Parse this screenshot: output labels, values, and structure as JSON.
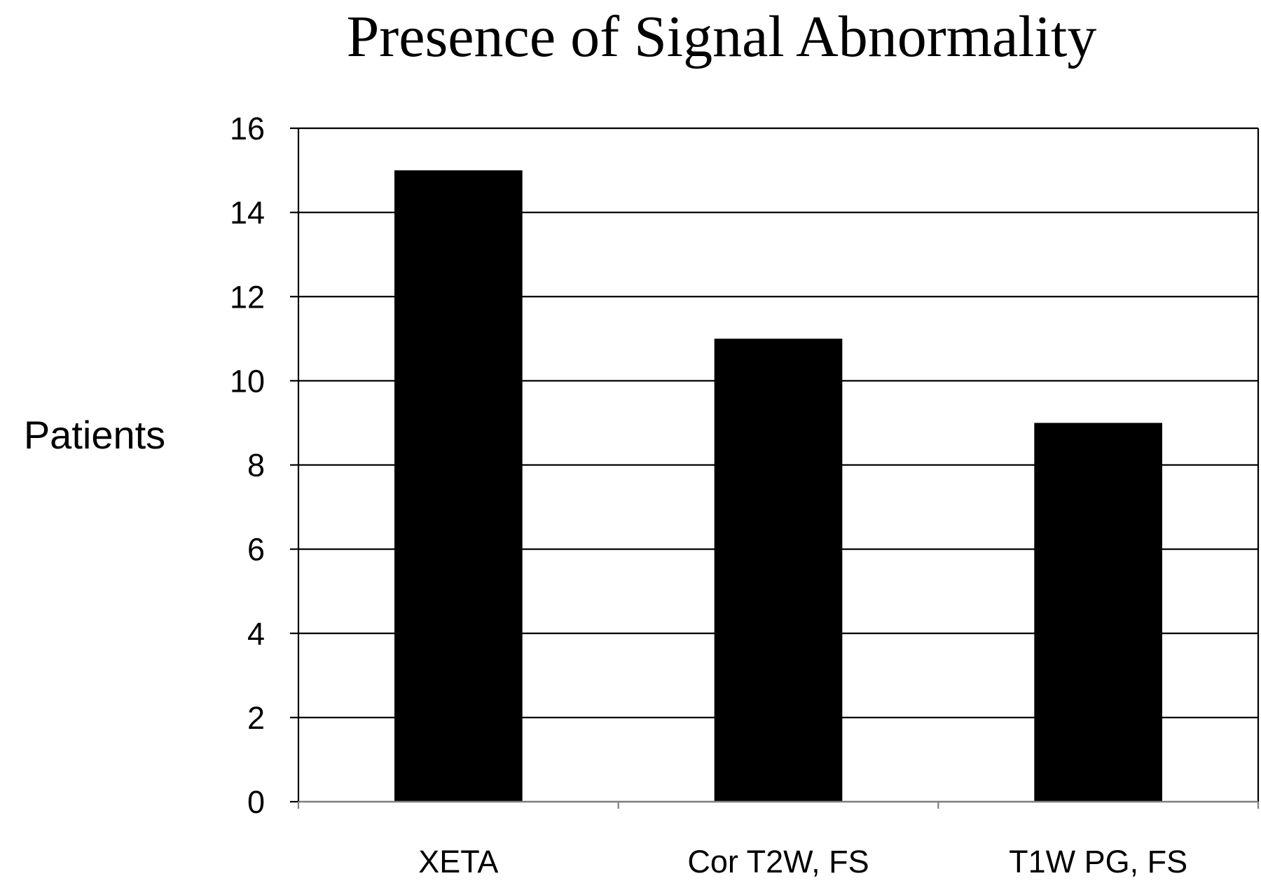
{
  "chart_data": {
    "type": "bar",
    "title": "Presence of Signal Abnormality",
    "xlabel": "",
    "ylabel": "Patients",
    "categories": [
      "XETA",
      "Cor T2W, FS",
      "T1W PG, FS"
    ],
    "values": [
      15,
      11,
      9
    ],
    "ylim": [
      0,
      16
    ],
    "yticks": [
      "0",
      "2",
      "4",
      "6",
      "8",
      "10",
      "12",
      "14",
      "16"
    ],
    "grid": true,
    "legend": "none",
    "bar_color": "#000000",
    "grid_color": "#000000"
  }
}
